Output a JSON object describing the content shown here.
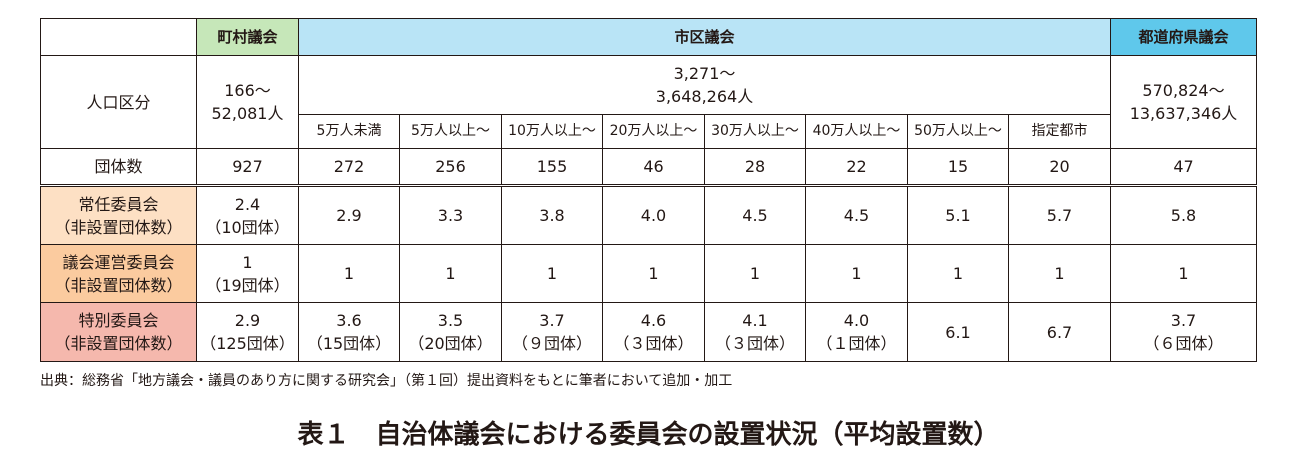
{
  "headers": {
    "town": "町村議会",
    "city": "市区議会",
    "pref": "都道府県議会"
  },
  "population": {
    "label": "人口区分",
    "town": [
      "166〜",
      "52,081人"
    ],
    "city": [
      "3,271〜",
      "3,648,264人"
    ],
    "pref": [
      "570,824〜",
      "13,637,346人"
    ],
    "city_categories": [
      "5万人未満",
      "5万人以上〜",
      "10万人以上〜",
      "20万人以上〜",
      "30万人以上〜",
      "40万人以上〜",
      "50万人以上〜",
      "指定都市"
    ]
  },
  "count": {
    "label": "団体数",
    "values": [
      "927",
      "272",
      "256",
      "155",
      "46",
      "28",
      "22",
      "15",
      "20",
      "47"
    ]
  },
  "rows": [
    {
      "label": [
        "常任委員会",
        "（非設置団体数）"
      ],
      "cells": [
        [
          "2.4",
          "（10団体）"
        ],
        [
          "2.9"
        ],
        [
          "3.3"
        ],
        [
          "3.8"
        ],
        [
          "4.0"
        ],
        [
          "4.5"
        ],
        [
          "4.5"
        ],
        [
          "5.1"
        ],
        [
          "5.7"
        ],
        [
          "5.8"
        ]
      ]
    },
    {
      "label": [
        "議会運営委員会",
        "（非設置団体数）"
      ],
      "cells": [
        [
          "1",
          "（19団体）"
        ],
        [
          "1"
        ],
        [
          "1"
        ],
        [
          "1"
        ],
        [
          "1"
        ],
        [
          "1"
        ],
        [
          "1"
        ],
        [
          "1"
        ],
        [
          "1"
        ],
        [
          "1"
        ]
      ]
    },
    {
      "label": [
        "特別委員会",
        "（非設置団体数）"
      ],
      "cells": [
        [
          "2.9",
          "（125団体）"
        ],
        [
          "3.6",
          "（15団体）"
        ],
        [
          "3.5",
          "（20団体）"
        ],
        [
          "3.7",
          "（９団体）"
        ],
        [
          "4.6",
          "（３団体）"
        ],
        [
          "4.1",
          "（３団体）"
        ],
        [
          "4.0",
          "（１団体）"
        ],
        [
          "6.1"
        ],
        [
          "6.7"
        ],
        [
          "3.7",
          "（６団体）"
        ]
      ]
    }
  ],
  "source": "出典：総務省「地方議会・議員のあり方に関する研究会」（第１回）提出資料をもとに筆者において追加・加工",
  "title": "表１　自治体議会における委員会の設置状況（平均設置数）",
  "colors": {
    "town_header": "#c6e7b9",
    "city_header": "#b9e4f6",
    "pref_header": "#5fc8eb",
    "standing_label": "#fde0c4",
    "steering_label": "#fbcb9f",
    "special_label": "#f5b8ad"
  }
}
